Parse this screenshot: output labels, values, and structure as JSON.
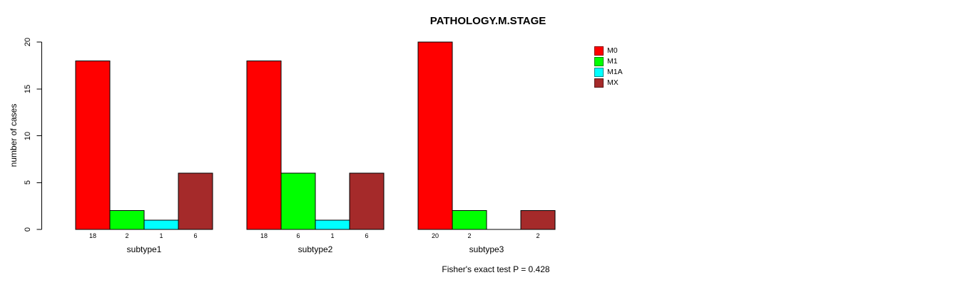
{
  "chart": {
    "title": "PATHOLOGY.M.STAGE",
    "ylabel": "number of cases",
    "footer": "Fisher's exact test P = 0.428"
  },
  "chart_data": {
    "type": "bar",
    "title": "PATHOLOGY.M.STAGE",
    "xlabel": "",
    "ylabel": "number of cases",
    "categories": [
      "subtype1",
      "subtype2",
      "subtype3"
    ],
    "series": [
      {
        "name": "M0",
        "color": "#FF0000",
        "values": [
          18,
          18,
          20
        ]
      },
      {
        "name": "M1",
        "color": "#00FF00",
        "values": [
          2,
          6,
          2
        ]
      },
      {
        "name": "M1A",
        "color": "#00FFFF",
        "values": [
          1,
          1,
          0
        ]
      },
      {
        "name": "MX",
        "color": "#A52A2A",
        "values": [
          6,
          6,
          2
        ]
      }
    ],
    "yticks": [
      0,
      5,
      10,
      15,
      20
    ],
    "ylim": [
      0,
      20
    ],
    "grid": false,
    "legend_position": "top-right",
    "legend_entries": [
      "M0",
      "M1",
      "M1A",
      "MX"
    ],
    "bar_value_labels": true,
    "zero_value_labels_hidden": true,
    "annotation": "Fisher's exact test P = 0.428",
    "axis_color": "#000000",
    "bar_border_color": "#000000"
  }
}
